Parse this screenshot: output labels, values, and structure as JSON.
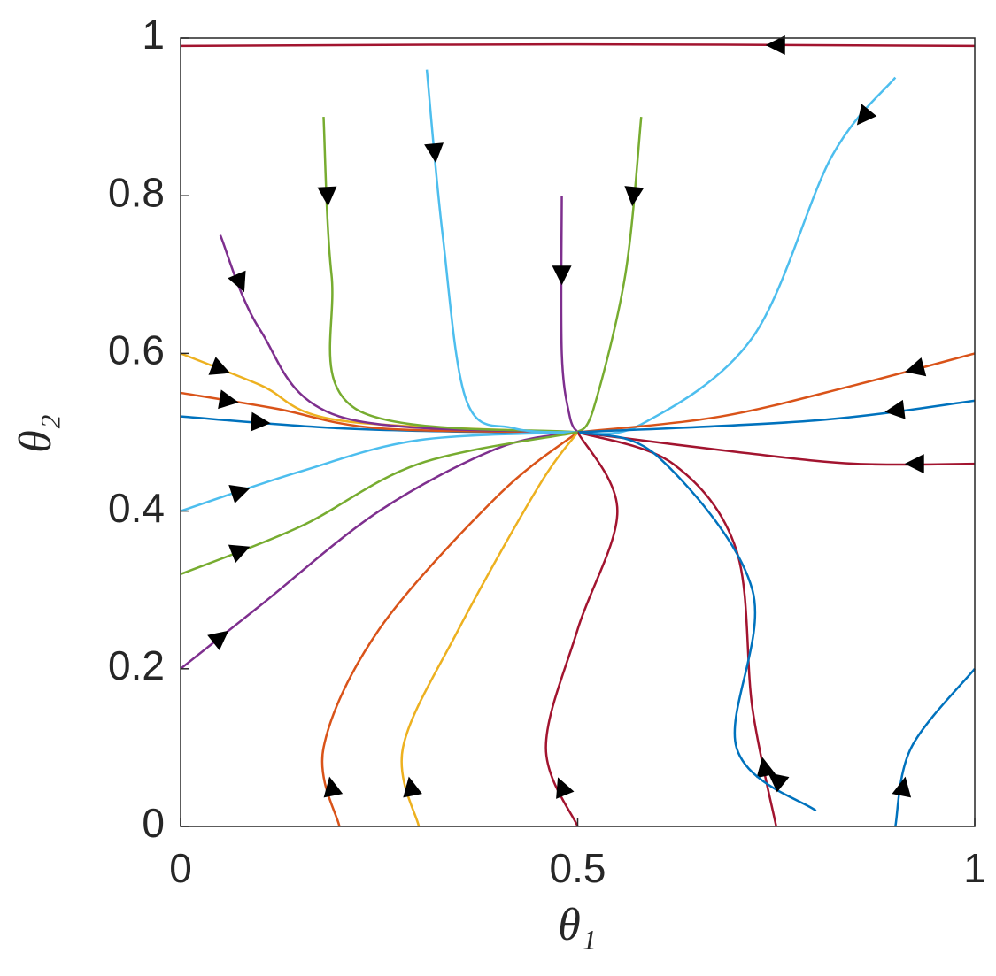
{
  "chart_data": {
    "type": "streamline",
    "xlabel": "θ₁",
    "ylabel": "θ₂",
    "xlim": [
      0,
      1
    ],
    "ylim": [
      0,
      1
    ],
    "xticks": [
      0,
      0.5,
      1
    ],
    "yticks": [
      0,
      0.2,
      0.4,
      0.6,
      0.8,
      1
    ],
    "streamlines": [
      {
        "color": "#0072BD",
        "x": [
          0,
          0.2,
          0.4,
          0.5
        ],
        "y": [
          0.52,
          0.505,
          0.5,
          0.5
        ]
      },
      {
        "color": "#D95319",
        "x": [
          0,
          0.12,
          0.25,
          0.5
        ],
        "y": [
          0.55,
          0.53,
          0.505,
          0.5
        ]
      },
      {
        "color": "#EDB120",
        "x": [
          0,
          0.1,
          0.2,
          0.5
        ],
        "y": [
          0.6,
          0.56,
          0.515,
          0.5
        ]
      },
      {
        "color": "#7E2F8E",
        "x": [
          0.05,
          0.1,
          0.2,
          0.5
        ],
        "y": [
          0.75,
          0.63,
          0.52,
          0.5
        ]
      },
      {
        "color": "#77AC30",
        "x": [
          0.18,
          0.19,
          0.22,
          0.5
        ],
        "y": [
          0.9,
          0.7,
          0.53,
          0.5
        ]
      },
      {
        "color": "#4DBEEE",
        "x": [
          0.31,
          0.33,
          0.36,
          0.42,
          0.5
        ],
        "y": [
          0.96,
          0.75,
          0.54,
          0.505,
          0.5
        ]
      },
      {
        "color": "#7E2F8E",
        "x": [
          0.48,
          0.48,
          0.49,
          0.5
        ],
        "y": [
          0.8,
          0.6,
          0.52,
          0.5
        ]
      },
      {
        "color": "#77AC30",
        "x": [
          0.58,
          0.56,
          0.52,
          0.5
        ],
        "y": [
          0.9,
          0.7,
          0.53,
          0.5
        ]
      },
      {
        "color": "#4DBEEE",
        "x": [
          0.9,
          0.82,
          0.72,
          0.58,
          0.5
        ],
        "y": [
          0.95,
          0.85,
          0.62,
          0.51,
          0.5
        ]
      },
      {
        "color": "#D95319",
        "x": [
          1,
          0.85,
          0.68,
          0.5
        ],
        "y": [
          0.6,
          0.56,
          0.52,
          0.5
        ]
      },
      {
        "color": "#0072BD",
        "x": [
          1,
          0.8,
          0.5
        ],
        "y": [
          0.54,
          0.515,
          0.5
        ]
      },
      {
        "color": "#A2142F",
        "x": [
          1,
          0.85,
          0.7,
          0.5
        ],
        "y": [
          0.46,
          0.46,
          0.475,
          0.5
        ]
      },
      {
        "color": "#A2142F",
        "x": [
          0.75,
          0.72,
          0.7,
          0.62,
          0.5
        ],
        "y": [
          0,
          0.15,
          0.35,
          0.46,
          0.5
        ]
      },
      {
        "color": "#0072BD",
        "x": [
          0.8,
          0.7,
          0.72,
          0.6,
          0.5
        ],
        "y": [
          0.02,
          0.1,
          0.3,
          0.47,
          0.5
        ]
      },
      {
        "color": "#D95319",
        "x": [
          0.2,
          0.18,
          0.25,
          0.4,
          0.5
        ],
        "y": [
          0,
          0.1,
          0.25,
          0.42,
          0.5
        ]
      },
      {
        "color": "#EDB120",
        "x": [
          0.3,
          0.28,
          0.35,
          0.45,
          0.5
        ],
        "y": [
          0,
          0.1,
          0.25,
          0.43,
          0.5
        ]
      },
      {
        "color": "#7E2F8E",
        "x": [
          0,
          0.1,
          0.25,
          0.4,
          0.5
        ],
        "y": [
          0.2,
          0.28,
          0.4,
          0.48,
          0.5
        ]
      },
      {
        "color": "#4DBEEE",
        "x": [
          0,
          0.15,
          0.3,
          0.5
        ],
        "y": [
          0.4,
          0.45,
          0.49,
          0.5
        ]
      },
      {
        "color": "#A2142F",
        "x": [
          0.5,
          0.46,
          0.5,
          0.55,
          0.5
        ],
        "y": [
          0,
          0.1,
          0.25,
          0.4,
          0.5
        ]
      },
      {
        "color": "#77AC30",
        "x": [
          0,
          0.15,
          0.3,
          0.5
        ],
        "y": [
          0.32,
          0.38,
          0.46,
          0.5
        ]
      },
      {
        "color": "#A2142F",
        "x": [
          1,
          0.5,
          0
        ],
        "y": [
          0.99,
          0.992,
          0.99
        ]
      },
      {
        "color": "#0072BD",
        "x": [
          0.9,
          0.92,
          1
        ],
        "y": [
          0,
          0.1,
          0.2
        ]
      }
    ]
  }
}
